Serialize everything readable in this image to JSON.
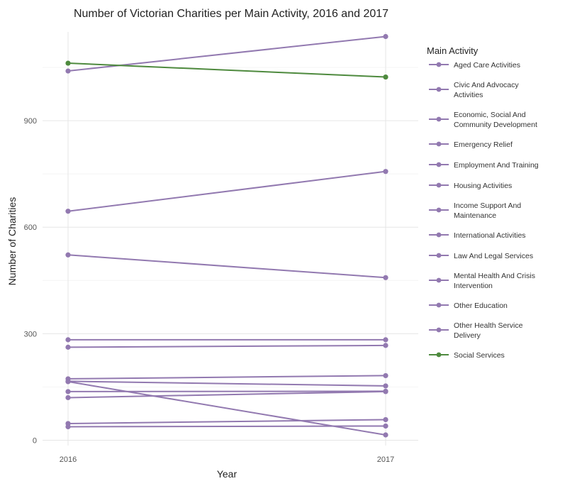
{
  "chart_data": {
    "type": "line",
    "title": "Number of Victorian Charities per Main Activity, 2016 and 2017",
    "xlabel": "Year",
    "ylabel": "Number of Charities",
    "x": [
      "2016",
      "2017"
    ],
    "ylim": [
      -15,
      1150
    ],
    "yticks": [
      0,
      300,
      600,
      900
    ],
    "grid": true,
    "legend": {
      "title": "Main Activity",
      "position": "right"
    },
    "series": [
      {
        "name": "Aged Care Activities",
        "values": [
          1040,
          1137
        ],
        "color": "#9279b0"
      },
      {
        "name": "Civic And Advocacy Activities",
        "values": [
          645,
          757
        ],
        "color": "#9279b0"
      },
      {
        "name": "Economic, Social And Community Development",
        "values": [
          522,
          458
        ],
        "color": "#9279b0"
      },
      {
        "name": "Emergency Relief",
        "values": [
          283,
          283
        ],
        "color": "#9279b0"
      },
      {
        "name": "Employment And Training",
        "values": [
          262,
          267
        ],
        "color": "#9279b0"
      },
      {
        "name": "Housing Activities",
        "values": [
          173,
          182
        ],
        "color": "#9279b0"
      },
      {
        "name": "Income Support And Maintenance",
        "values": [
          166,
          153
        ],
        "color": "#9279b0"
      },
      {
        "name": "International Activities",
        "values": [
          165,
          15
        ],
        "color": "#9279b0"
      },
      {
        "name": "Law And Legal Services",
        "values": [
          137,
          138
        ],
        "color": "#9279b0"
      },
      {
        "name": "Mental Health And Crisis Intervention",
        "values": [
          120,
          137
        ],
        "color": "#9279b0"
      },
      {
        "name": "Other Education",
        "values": [
          47,
          58
        ],
        "color": "#9279b0"
      },
      {
        "name": "Other Health Service Delivery",
        "values": [
          38,
          40
        ],
        "color": "#9279b0"
      },
      {
        "name": "Social Services",
        "values": [
          1062,
          1023
        ],
        "color": "#4e8a3e"
      }
    ]
  }
}
